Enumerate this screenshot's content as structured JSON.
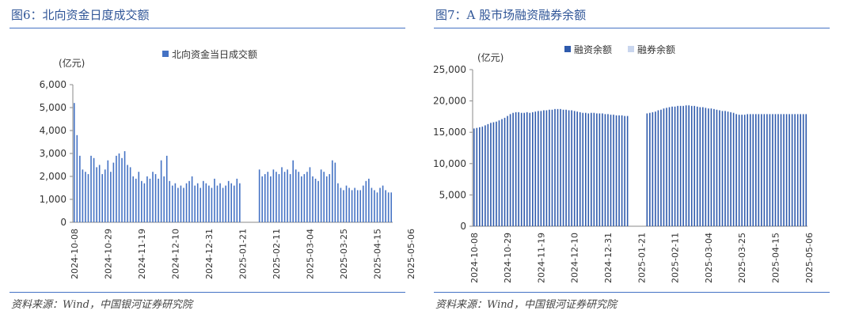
{
  "source_text": "资料来源：Wind，中国银河证券研究院",
  "chart_data": [
    {
      "type": "bar",
      "title": "图6：北向资金日度成交额",
      "unit": "(亿元)",
      "ylim": [
        0,
        6000
      ],
      "yticks": [
        "0",
        "1,000",
        "2,000",
        "3,000",
        "4,000",
        "5,000",
        "6,000"
      ],
      "legend_position": "top-center",
      "x_tick_labels": [
        "2024-10-08",
        "2024-10-29",
        "2024-11-19",
        "2024-12-10",
        "2024-12-31",
        "2025-01-21",
        "2025-02-11",
        "2025-03-04",
        "2025-03-25",
        "2025-04-15",
        "2025-05-06"
      ],
      "x_tick_index": [
        0,
        12,
        24,
        36,
        48,
        60,
        72,
        84,
        96,
        108,
        120
      ],
      "series": [
        {
          "name": "北向资金当日成交额",
          "color": "#4472c4",
          "values": [
            5200,
            3800,
            2900,
            2300,
            2200,
            2100,
            2900,
            2800,
            2400,
            2500,
            2100,
            2300,
            2700,
            2200,
            2600,
            2900,
            3000,
            2800,
            3100,
            2500,
            2400,
            2000,
            1900,
            2200,
            1800,
            1700,
            2000,
            1900,
            2200,
            2100,
            1900,
            2700,
            2000,
            2900,
            1800,
            1600,
            1700,
            1500,
            1600,
            1500,
            1700,
            1800,
            2000,
            1600,
            1700,
            1500,
            1800,
            1700,
            1600,
            1500,
            1900,
            1600,
            1700,
            1500,
            1600,
            1800,
            1700,
            1600,
            1900,
            1700,
            null,
            null,
            null,
            null,
            null,
            null,
            2300,
            2000,
            2100,
            2200,
            2000,
            2300,
            2200,
            2100,
            2400,
            2200,
            2300,
            2100,
            2700,
            2300,
            2200,
            2000,
            2100,
            2200,
            2400,
            2000,
            1900,
            1800,
            2300,
            2200,
            2000,
            2100,
            2700,
            2600,
            1700,
            1500,
            1400,
            1600,
            1500,
            1400,
            1500,
            1400,
            1400,
            1600,
            1800,
            1900,
            1500,
            1400,
            1300,
            1500,
            1600,
            1400,
            1300,
            1300
          ]
        }
      ]
    },
    {
      "type": "bar",
      "title": "图7：A 股市场融资融券余额",
      "unit": "(亿元)",
      "ylim": [
        0,
        25000
      ],
      "yticks": [
        "0",
        "5,000",
        "10,000",
        "15,000",
        "20,000",
        "25,000"
      ],
      "legend_position": "top-center",
      "x_tick_labels": [
        "2024-10-08",
        "2024-10-29",
        "2024-11-19",
        "2024-12-10",
        "2024-12-31",
        "2025-01-21",
        "2025-02-11",
        "2025-03-04",
        "2025-03-25",
        "2025-04-15",
        "2025-05-06"
      ],
      "x_tick_index": [
        0,
        12,
        24,
        36,
        48,
        60,
        72,
        84,
        96,
        108,
        120
      ],
      "series": [
        {
          "name": "融资余额",
          "color": "#2e5aac",
          "values": [
            15600,
            15700,
            15800,
            15900,
            16100,
            16300,
            16500,
            16600,
            16700,
            16900,
            17100,
            17300,
            17600,
            17900,
            18100,
            18200,
            18200,
            18100,
            18100,
            18200,
            18100,
            18200,
            18300,
            18400,
            18400,
            18500,
            18500,
            18600,
            18600,
            18700,
            18700,
            18700,
            18600,
            18600,
            18500,
            18500,
            18400,
            18300,
            18200,
            18100,
            18100,
            18000,
            18100,
            18100,
            18000,
            18000,
            18000,
            17900,
            17900,
            17800,
            17800,
            17700,
            17700,
            17700,
            17600,
            17600,
            null,
            null,
            null,
            null,
            null,
            null,
            18000,
            18100,
            18200,
            18300,
            18500,
            18600,
            18800,
            18900,
            19000,
            19100,
            19100,
            19200,
            19200,
            19200,
            19300,
            19300,
            19200,
            19200,
            19100,
            19000,
            19000,
            18900,
            18800,
            18800,
            18700,
            18600,
            18500,
            18400,
            18400,
            18300,
            18200,
            18100,
            17900,
            17800,
            17800,
            17800,
            17900,
            17900,
            17900,
            17900,
            17900,
            17900,
            17900,
            17900,
            17900,
            17900,
            17900,
            17900,
            17900,
            17900,
            17900,
            17900,
            17900,
            17900,
            17900,
            17900,
            17900,
            17900
          ]
        },
        {
          "name": "融券余额",
          "color": "#c9d6ee",
          "values": [
            60,
            60,
            60,
            60,
            60,
            60,
            60,
            60,
            60,
            60,
            60,
            60,
            60,
            60,
            60,
            60,
            60,
            60,
            60,
            60,
            60,
            60,
            60,
            60,
            60,
            60,
            60,
            60,
            60,
            60,
            60,
            60,
            60,
            60,
            60,
            60,
            60,
            60,
            60,
            60,
            60,
            60,
            60,
            60,
            60,
            60,
            60,
            60,
            60,
            60,
            60,
            60,
            60,
            60,
            60,
            60,
            null,
            null,
            null,
            null,
            null,
            null,
            60,
            60,
            60,
            60,
            60,
            60,
            60,
            60,
            60,
            60,
            60,
            60,
            60,
            60,
            60,
            60,
            60,
            60,
            60,
            60,
            60,
            60,
            60,
            60,
            60,
            60,
            60,
            60,
            60,
            60,
            60,
            60,
            60,
            60,
            60,
            60,
            60,
            60,
            60,
            60,
            60,
            60,
            60,
            60,
            60,
            60,
            60,
            60,
            60,
            60,
            60,
            60,
            60,
            60,
            60,
            60,
            60,
            60
          ]
        }
      ]
    }
  ]
}
